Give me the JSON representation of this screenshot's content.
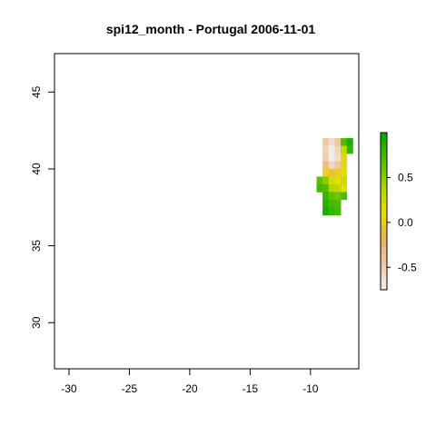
{
  "chart_data": {
    "type": "heatmap",
    "title": "spi12_month - Portugal 2006-11-01",
    "xlabel": "",
    "ylabel": "",
    "xlim": [
      -31.2,
      -6.0
    ],
    "ylim": [
      27.0,
      47.5
    ],
    "xticks": [
      -30,
      -25,
      -20,
      -15,
      -10
    ],
    "yticks": [
      30,
      35,
      40,
      45
    ],
    "grid": false,
    "cell_size_deg": 0.5,
    "legend": {
      "type": "colorbar",
      "placement": "right",
      "range": [
        -0.75,
        1.0
      ],
      "ticks": [
        -0.5,
        0.0,
        0.5
      ],
      "tick_labels": [
        "-0.5",
        "0.0",
        "0.5"
      ],
      "colors": [
        "#f2f2f2",
        "#eec9a8",
        "#e8b35a",
        "#e6df00",
        "#a6d400",
        "#4fbc00",
        "#00a600"
      ]
    },
    "cells": [
      {
        "lat": 41.75,
        "lon": -8.75,
        "value": -0.45
      },
      {
        "lat": 41.75,
        "lon": -8.25,
        "value": -0.6
      },
      {
        "lat": 41.75,
        "lon": -7.75,
        "value": -0.4
      },
      {
        "lat": 41.75,
        "lon": -7.25,
        "value": 0.7
      },
      {
        "lat": 41.75,
        "lon": -6.75,
        "value": 0.9
      },
      {
        "lat": 41.25,
        "lon": -8.75,
        "value": -0.55
      },
      {
        "lat": 41.25,
        "lon": -8.25,
        "value": -0.7
      },
      {
        "lat": 41.25,
        "lon": -7.75,
        "value": -0.55
      },
      {
        "lat": 41.25,
        "lon": -7.25,
        "value": 0.3
      },
      {
        "lat": 41.25,
        "lon": -6.75,
        "value": 0.8
      },
      {
        "lat": 40.75,
        "lon": -8.75,
        "value": -0.5
      },
      {
        "lat": 40.75,
        "lon": -8.25,
        "value": -0.72
      },
      {
        "lat": 40.75,
        "lon": -7.75,
        "value": -0.6
      },
      {
        "lat": 40.75,
        "lon": -7.25,
        "value": 0.1
      },
      {
        "lat": 40.25,
        "lon": -8.75,
        "value": -0.3
      },
      {
        "lat": 40.25,
        "lon": -8.25,
        "value": -0.55
      },
      {
        "lat": 40.25,
        "lon": -7.75,
        "value": -0.45
      },
      {
        "lat": 40.25,
        "lon": -7.25,
        "value": 0.05
      },
      {
        "lat": 39.75,
        "lon": -8.75,
        "value": 0.05
      },
      {
        "lat": 39.75,
        "lon": -8.25,
        "value": -0.1
      },
      {
        "lat": 39.75,
        "lon": -7.75,
        "value": 0.0
      },
      {
        "lat": 39.75,
        "lon": -7.25,
        "value": 0.15
      },
      {
        "lat": 39.25,
        "lon": -9.25,
        "value": 0.65
      },
      {
        "lat": 39.25,
        "lon": -8.75,
        "value": 0.5
      },
      {
        "lat": 39.25,
        "lon": -8.25,
        "value": 0.2
      },
      {
        "lat": 39.25,
        "lon": -7.75,
        "value": 0.1
      },
      {
        "lat": 39.25,
        "lon": -7.25,
        "value": 0.25
      },
      {
        "lat": 38.75,
        "lon": -9.25,
        "value": 0.75
      },
      {
        "lat": 38.75,
        "lon": -8.75,
        "value": 0.7
      },
      {
        "lat": 38.75,
        "lon": -8.25,
        "value": 0.35
      },
      {
        "lat": 38.75,
        "lon": -7.75,
        "value": 0.3
      },
      {
        "lat": 38.75,
        "lon": -7.25,
        "value": 0.15
      },
      {
        "lat": 38.25,
        "lon": -8.75,
        "value": 0.8
      },
      {
        "lat": 38.25,
        "lon": -8.25,
        "value": 0.65
      },
      {
        "lat": 38.25,
        "lon": -7.75,
        "value": 0.6
      },
      {
        "lat": 38.25,
        "lon": -7.25,
        "value": 0.7
      },
      {
        "lat": 37.75,
        "lon": -8.75,
        "value": 0.85
      },
      {
        "lat": 37.75,
        "lon": -8.25,
        "value": 0.75
      },
      {
        "lat": 37.75,
        "lon": -7.75,
        "value": 0.7
      },
      {
        "lat": 37.25,
        "lon": -8.75,
        "value": 0.9
      },
      {
        "lat": 37.25,
        "lon": -8.25,
        "value": 0.8
      },
      {
        "lat": 37.25,
        "lon": -7.75,
        "value": 0.75
      }
    ]
  }
}
